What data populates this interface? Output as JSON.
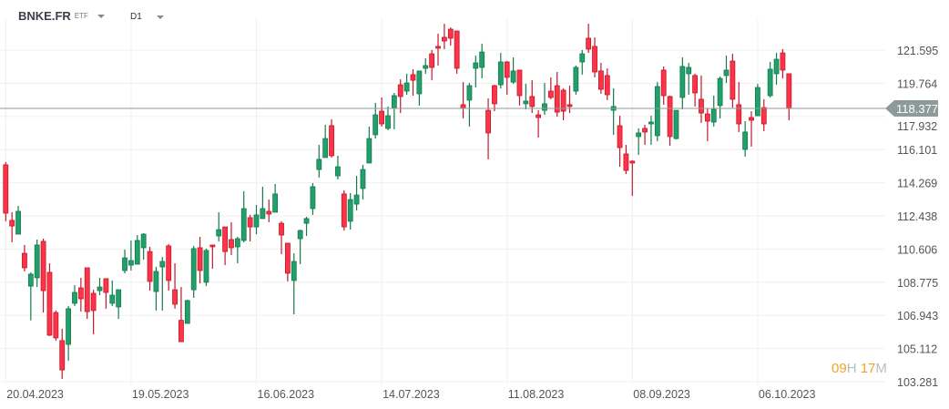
{
  "header": {
    "symbol": "BNKE.FR",
    "type": "ETF",
    "timeframe": "D1"
  },
  "countdown": {
    "hours": "09",
    "hours_unit": "H",
    "minutes": "17",
    "minutes_unit": "M"
  },
  "colors": {
    "up": "#22a06b",
    "up_border": "#147a4c",
    "down": "#ff3347",
    "down_border": "#c2182b",
    "price_line": "#8d9a9a"
  },
  "chart_data": {
    "type": "candlestick",
    "title": "BNKE.FR D1",
    "current_price": "118.377",
    "ylim": [
      103.281,
      121.595
    ],
    "y_ticks": [
      "121.595",
      "119.764",
      "117.932",
      "116.101",
      "114.269",
      "112.438",
      "110.606",
      "108.775",
      "106.943",
      "105.112",
      "103.281"
    ],
    "x_ticks": [
      {
        "index": 0,
        "label": "20.04.2023"
      },
      {
        "index": 20,
        "label": "19.05.2023"
      },
      {
        "index": 40,
        "label": "16.06.2023"
      },
      {
        "index": 60,
        "label": "14.07.2023"
      },
      {
        "index": 80,
        "label": "11.08.2023"
      },
      {
        "index": 100,
        "label": "08.09.2023"
      },
      {
        "index": 120,
        "label": "06.10.2023"
      }
    ],
    "grid": true,
    "ohlc": [
      [
        115.26,
        115.41,
        112.14,
        112.59
      ],
      [
        112.19,
        112.64,
        110.98,
        111.88
      ],
      [
        111.43,
        112.99,
        111.43,
        112.69
      ],
      [
        110.37,
        110.83,
        109.37,
        109.57
      ],
      [
        108.56,
        109.32,
        106.67,
        109.22
      ],
      [
        109.02,
        111.13,
        108.51,
        110.83
      ],
      [
        111.03,
        111.18,
        107.1,
        108.31
      ],
      [
        109.32,
        109.82,
        105.8,
        105.85
      ],
      [
        107.1,
        107.21,
        105.55,
        105.7
      ],
      [
        105.55,
        106.2,
        103.43,
        103.93
      ],
      [
        105.34,
        107.46,
        104.44,
        107.31
      ],
      [
        107.61,
        108.61,
        107.46,
        108.21
      ],
      [
        108.46,
        109.02,
        107.15,
        107.86
      ],
      [
        109.57,
        109.57,
        106.75,
        107.15
      ],
      [
        108.16,
        108.36,
        105.9,
        107.21
      ],
      [
        108.31,
        109.02,
        108.06,
        108.51
      ],
      [
        108.97,
        108.97,
        107.31,
        108.21
      ],
      [
        107.61,
        108.87,
        107.46,
        108.06
      ],
      [
        107.41,
        108.36,
        106.75,
        108.36
      ],
      [
        109.42,
        110.58,
        109.27,
        110.12
      ],
      [
        109.72,
        111.08,
        109.42,
        109.97
      ],
      [
        109.77,
        111.38,
        109.77,
        111.08
      ],
      [
        110.68,
        111.48,
        110.02,
        111.43
      ],
      [
        110.47,
        110.73,
        108.31,
        108.82
      ],
      [
        108.26,
        109.62,
        107.21,
        109.37
      ],
      [
        109.62,
        110.17,
        107.21,
        109.92
      ],
      [
        110.78,
        110.88,
        108.31,
        108.87
      ],
      [
        108.36,
        109.82,
        107.31,
        107.56
      ],
      [
        106.67,
        108.51,
        105.49,
        105.49
      ],
      [
        106.5,
        107.81,
        106.5,
        107.76
      ],
      [
        108.36,
        110.78,
        107.91,
        110.63
      ],
      [
        110.68,
        111.28,
        108.71,
        109.42
      ],
      [
        108.77,
        110.63,
        108.56,
        110.53
      ],
      [
        110.83,
        110.83,
        109.52,
        110.73
      ],
      [
        111.33,
        112.64,
        111.03,
        111.68
      ],
      [
        111.83,
        111.83,
        109.72,
        110.47
      ],
      [
        111.13,
        112.09,
        110.27,
        110.68
      ],
      [
        110.73,
        111.28,
        109.82,
        111.18
      ],
      [
        111.08,
        113.8,
        110.98,
        112.84
      ],
      [
        112.34,
        112.49,
        111.03,
        111.83
      ],
      [
        111.83,
        113.04,
        111.43,
        112.49
      ],
      [
        112.29,
        114.05,
        112.29,
        112.84
      ],
      [
        112.69,
        113.34,
        112.09,
        112.54
      ],
      [
        112.64,
        114.2,
        112.64,
        113.65
      ],
      [
        112.03,
        112.14,
        110.32,
        111.38
      ],
      [
        110.93,
        110.93,
        108.82,
        109.27
      ],
      [
        108.87,
        110.37,
        107.0,
        109.92
      ],
      [
        111.18,
        111.68,
        109.77,
        111.63
      ],
      [
        112.03,
        112.39,
        111.33,
        112.29
      ],
      [
        112.84,
        114.25,
        112.49,
        114.05
      ],
      [
        115.0,
        116.36,
        114.55,
        115.56
      ],
      [
        115.66,
        117.47,
        115.66,
        116.71
      ],
      [
        117.42,
        117.77,
        115.66,
        115.76
      ],
      [
        114.65,
        115.76,
        114.45,
        115.15
      ],
      [
        113.65,
        113.85,
        111.63,
        111.83
      ],
      [
        112.14,
        113.7,
        111.68,
        113.34
      ],
      [
        113.09,
        114.65,
        112.74,
        113.59
      ],
      [
        113.95,
        115.26,
        113.34,
        115.0
      ],
      [
        115.36,
        117.37,
        115.36,
        116.71
      ],
      [
        116.92,
        118.68,
        116.71,
        118.02
      ],
      [
        118.22,
        118.98,
        117.37,
        117.52
      ],
      [
        117.27,
        118.48,
        117.17,
        117.97
      ],
      [
        118.37,
        119.23,
        117.22,
        119.08
      ],
      [
        119.68,
        119.98,
        118.12,
        119.03
      ],
      [
        119.33,
        120.29,
        119.13,
        119.78
      ],
      [
        120.24,
        120.54,
        119.08,
        119.93
      ],
      [
        119.18,
        120.44,
        118.53,
        120.44
      ],
      [
        120.59,
        121.14,
        120.29,
        120.74
      ],
      [
        121.39,
        121.6,
        119.93,
        120.64
      ],
      [
        121.8,
        122.5,
        120.74,
        121.7
      ],
      [
        122.3,
        123.05,
        121.65,
        122.1
      ],
      [
        122.75,
        122.85,
        121.85,
        122.25
      ],
      [
        122.65,
        122.65,
        120.29,
        120.59
      ],
      [
        118.58,
        119.83,
        117.82,
        118.37
      ],
      [
        118.83,
        119.78,
        117.37,
        119.63
      ],
      [
        120.59,
        121.29,
        119.53,
        120.89
      ],
      [
        120.64,
        121.95,
        120.03,
        121.49
      ],
      [
        118.27,
        118.93,
        115.56,
        117.02
      ],
      [
        119.63,
        119.68,
        118.22,
        118.63
      ],
      [
        119.68,
        121.44,
        119.48,
        120.94
      ],
      [
        120.94,
        120.99,
        119.13,
        120.09
      ],
      [
        119.83,
        121.19,
        119.73,
        120.44
      ],
      [
        120.49,
        120.49,
        118.53,
        119.08
      ],
      [
        118.63,
        119.73,
        118.32,
        118.78
      ],
      [
        119.03,
        119.93,
        118.12,
        118.48
      ],
      [
        118.02,
        118.27,
        116.76,
        117.87
      ],
      [
        118.27,
        119.78,
        118.02,
        118.63
      ],
      [
        119.33,
        120.09,
        118.88,
        118.98
      ],
      [
        119.63,
        120.39,
        117.92,
        118.17
      ],
      [
        119.38,
        119.48,
        117.72,
        118.22
      ],
      [
        118.58,
        119.63,
        118.12,
        118.48
      ],
      [
        119.33,
        120.74,
        119.13,
        120.64
      ],
      [
        120.94,
        121.6,
        120.24,
        121.39
      ],
      [
        122.25,
        123.05,
        121.44,
        121.65
      ],
      [
        121.8,
        122.3,
        120.09,
        120.39
      ],
      [
        120.44,
        120.89,
        119.18,
        119.43
      ],
      [
        120.19,
        120.59,
        118.83,
        119.13
      ],
      [
        118.27,
        119.48,
        116.92,
        118.48
      ],
      [
        117.42,
        117.97,
        115.15,
        116.21
      ],
      [
        115.86,
        116.36,
        114.75,
        114.95
      ],
      [
        115.46,
        115.51,
        113.54,
        115.36
      ],
      [
        116.82,
        117.27,
        115.81,
        117.02
      ],
      [
        117.27,
        117.47,
        116.36,
        117.07
      ],
      [
        117.52,
        117.97,
        116.36,
        117.62
      ],
      [
        116.87,
        119.83,
        116.56,
        119.58
      ],
      [
        120.49,
        120.69,
        118.58,
        119.08
      ],
      [
        119.03,
        119.08,
        116.31,
        116.82
      ],
      [
        116.71,
        118.27,
        116.66,
        118.27
      ],
      [
        118.98,
        121.19,
        118.32,
        120.69
      ],
      [
        120.29,
        120.89,
        119.13,
        120.64
      ],
      [
        120.19,
        120.29,
        118.48,
        119.23
      ],
      [
        118.88,
        120.19,
        117.57,
        118.12
      ],
      [
        118.07,
        118.37,
        116.56,
        117.67
      ],
      [
        117.62,
        119.08,
        117.37,
        118.32
      ],
      [
        118.53,
        120.14,
        117.82,
        120.03
      ],
      [
        120.19,
        121.29,
        119.78,
        120.49
      ],
      [
        120.99,
        121.39,
        118.42,
        118.88
      ],
      [
        118.58,
        119.83,
        117.07,
        117.52
      ],
      [
        116.11,
        117.67,
        115.71,
        117.07
      ],
      [
        117.87,
        118.22,
        116.26,
        117.72
      ],
      [
        117.97,
        119.73,
        117.97,
        119.53
      ],
      [
        118.42,
        118.88,
        117.12,
        117.52
      ],
      [
        119.08,
        120.94,
        118.98,
        120.54
      ],
      [
        120.29,
        121.44,
        119.68,
        121.09
      ],
      [
        121.44,
        121.65,
        120.03,
        120.49
      ],
      [
        120.29,
        120.29,
        117.72,
        118.377
      ]
    ]
  }
}
